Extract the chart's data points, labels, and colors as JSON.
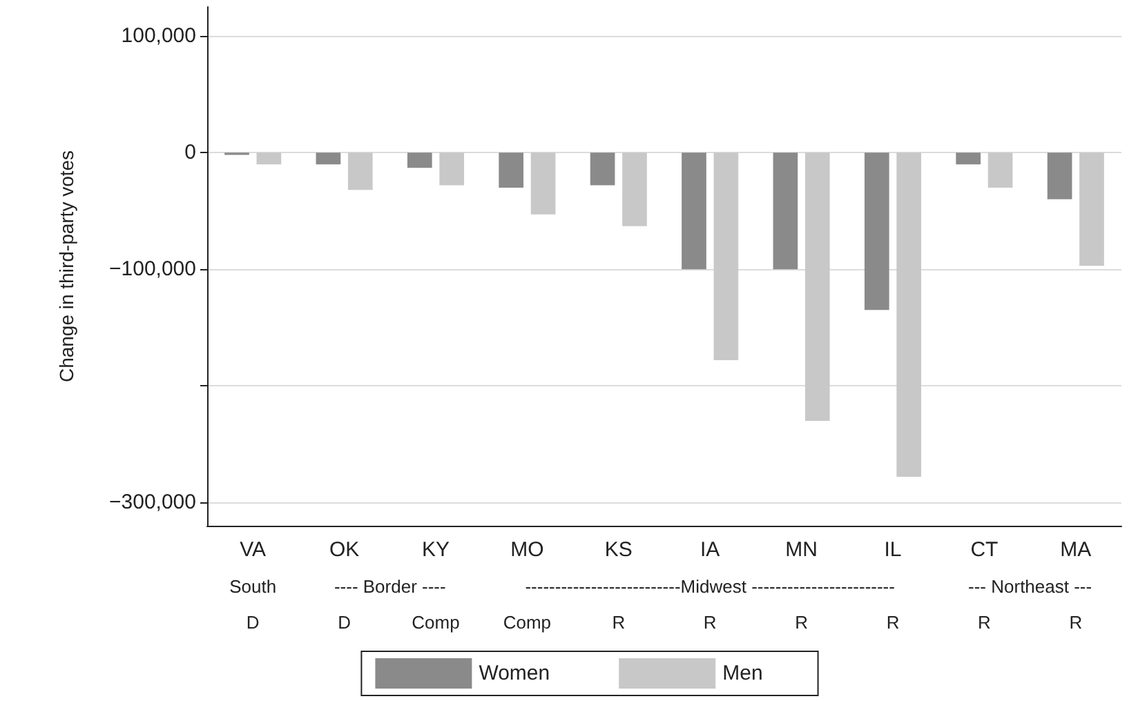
{
  "chart_data": {
    "type": "bar",
    "ylabel": "Change in third-party votes",
    "categories": [
      "VA",
      "OK",
      "KY",
      "MO",
      "KS",
      "IA",
      "MN",
      "IL",
      "CT",
      "MA"
    ],
    "series": [
      {
        "name": "Women",
        "color": "#8a8a8a",
        "values": [
          -2000,
          -10000,
          -13000,
          -30000,
          -28000,
          -100000,
          -100000,
          -135000,
          -10000,
          -40000
        ]
      },
      {
        "name": "Men",
        "color": "#c8c8c8",
        "values": [
          -10000,
          -32000,
          -28000,
          -53000,
          -63000,
          -178000,
          -230000,
          -278000,
          -30000,
          -97000
        ]
      }
    ],
    "ylim": [
      -320000,
      125000
    ],
    "yticks": [
      {
        "value": 100000,
        "label": "100,000"
      },
      0,
      {
        "value": -100000,
        "label": "−100,000"
      },
      {
        "value": -200000,
        "label": null
      },
      {
        "value": -300000,
        "label": "−300,000"
      }
    ],
    "annotations": [
      "South",
      "---- Border ----",
      "--------------------------Midwest ------------------------",
      "--- Northeast ---",
      "D",
      "D",
      "Comp",
      "Comp",
      "R",
      "R",
      "R",
      "R",
      "R",
      "R"
    ],
    "grid": "y",
    "legend": "bottom"
  }
}
